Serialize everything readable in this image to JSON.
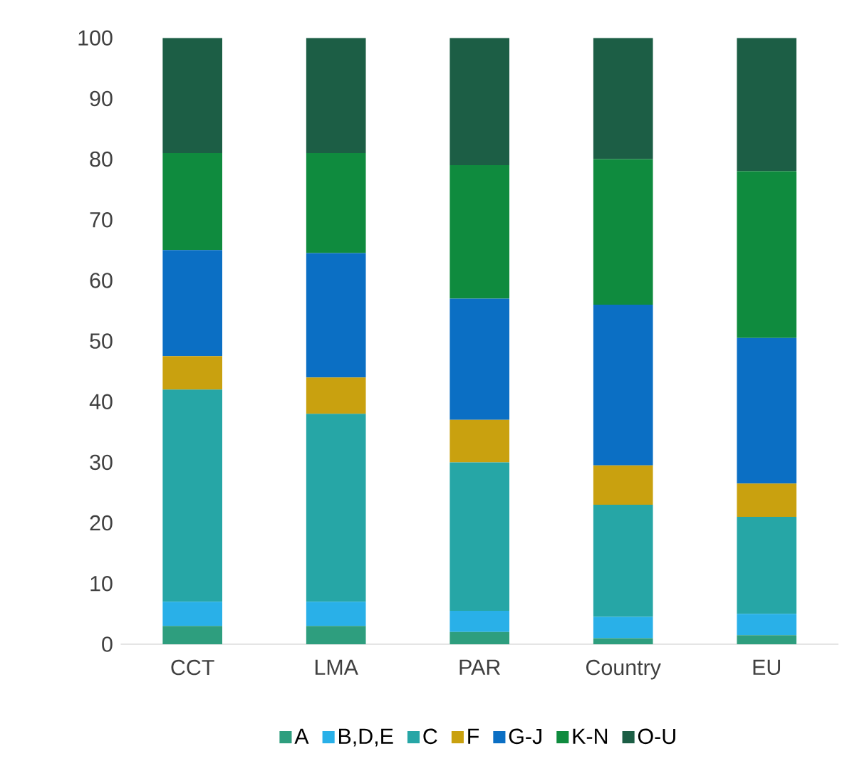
{
  "chart_data": {
    "type": "bar",
    "stacked": true,
    "categories": [
      "CCT",
      "LMA",
      "PAR",
      "Country",
      "EU"
    ],
    "series": [
      {
        "name": "A",
        "color": "#2e9e7e",
        "values": [
          3,
          3,
          2,
          1,
          1.5
        ]
      },
      {
        "name": "B,D,E",
        "color": "#29b0e8",
        "values": [
          4,
          4,
          3.5,
          3.5,
          3.5
        ]
      },
      {
        "name": "C",
        "color": "#26a6a6",
        "values": [
          35,
          31,
          24.5,
          18.5,
          16
        ]
      },
      {
        "name": "F",
        "color": "#c9a10f",
        "values": [
          5.5,
          6,
          7,
          6.5,
          5.5
        ]
      },
      {
        "name": "G-J",
        "color": "#0b6fc4",
        "values": [
          17.5,
          20.5,
          20,
          26.5,
          24
        ]
      },
      {
        "name": "K-N",
        "color": "#0f8b3e",
        "values": [
          16,
          16.5,
          22,
          24,
          27.5
        ]
      },
      {
        "name": "O-U",
        "color": "#1c5e45",
        "values": [
          19,
          19,
          21,
          20,
          22
        ]
      }
    ],
    "ylim": [
      0,
      100
    ],
    "yticks": [
      0,
      10,
      20,
      30,
      40,
      50,
      60,
      70,
      80,
      90,
      100
    ],
    "legend": "bottom"
  }
}
